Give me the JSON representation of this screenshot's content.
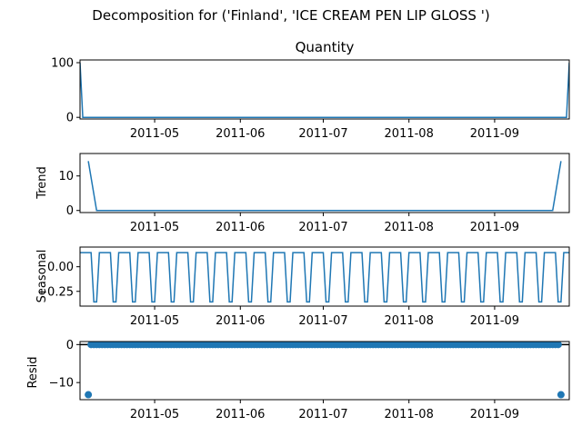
{
  "figure": {
    "title": "Decomposition for ('Finland', 'ICE CREAM PEN LIP GLOSS ')",
    "line_color": "#1f77b4"
  },
  "chart_data": [
    {
      "type": "line",
      "title": "Quantity",
      "ylabel": "",
      "ylim": [
        -3,
        105
      ],
      "yticks": [
        0,
        100
      ],
      "xlim": [
        "2011-04-04",
        "2011-09-28"
      ],
      "xticks": [
        "2011-05",
        "2011-06",
        "2011-07",
        "2011-08",
        "2011-09"
      ],
      "points": [
        {
          "x": "2011-04-04",
          "y": 100
        },
        {
          "x": "2011-04-05",
          "y": 0
        },
        {
          "x": "2011-09-27",
          "y": 0
        },
        {
          "x": "2011-09-28",
          "y": 100
        }
      ]
    },
    {
      "type": "line",
      "title": "",
      "ylabel": "Trend",
      "ylim": [
        -0.6,
        16.5
      ],
      "yticks": [
        0,
        10
      ],
      "xlim": [
        "2011-04-04",
        "2011-09-28"
      ],
      "xticks": [
        "2011-05",
        "2011-06",
        "2011-07",
        "2011-08",
        "2011-09"
      ],
      "points": [
        {
          "x": "2011-04-07",
          "y": 14.3
        },
        {
          "x": "2011-04-10",
          "y": 0
        },
        {
          "x": "2011-09-22",
          "y": 0
        },
        {
          "x": "2011-09-25",
          "y": 14.3
        }
      ]
    },
    {
      "type": "line",
      "title": "",
      "ylabel": "Seasonal",
      "ylim": [
        -0.4,
        0.2
      ],
      "yticks": [
        0.0,
        -0.25
      ],
      "ytick_labels": [
        "0.00",
        "−0.25"
      ],
      "xlim": [
        "2011-04-04",
        "2011-09-28"
      ],
      "xticks": [
        "2011-05",
        "2011-06",
        "2011-07",
        "2011-08",
        "2011-09"
      ],
      "period_days": 7,
      "pattern": [
        0.143,
        0.143,
        0.143,
        0.143,
        0.143,
        -0.357,
        -0.357
      ],
      "start": "2011-04-04",
      "end": "2011-09-28"
    },
    {
      "type": "scatter",
      "title": "",
      "ylabel": "Resid",
      "ylim": [
        -14.5,
        0.8
      ],
      "yticks": [
        0,
        -10
      ],
      "ytick_labels": [
        "0",
        "−10"
      ],
      "xlim": [
        "2011-04-04",
        "2011-09-28"
      ],
      "xticks": [
        "2011-05",
        "2011-06",
        "2011-07",
        "2011-08",
        "2011-09"
      ],
      "zero_line": true,
      "start": "2011-04-07",
      "end": "2011-09-25",
      "baseline_value": 0,
      "outliers": [
        {
          "x": "2011-04-07",
          "y": -13.2
        },
        {
          "x": "2011-09-25",
          "y": -13.2
        }
      ]
    }
  ]
}
